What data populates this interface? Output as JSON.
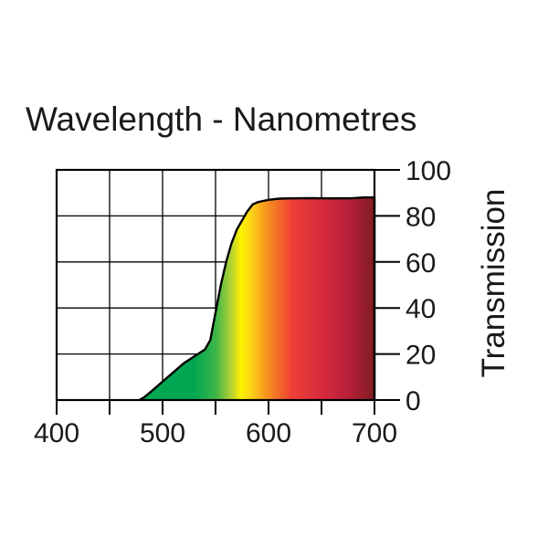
{
  "chart_data": {
    "type": "area",
    "title": "Wavelength - Nanometres",
    "xlabel": "",
    "ylabel": "Transmission",
    "xlim": [
      400,
      700
    ],
    "ylim": [
      0,
      100
    ],
    "x_ticks": [
      "400",
      "500",
      "600",
      "700"
    ],
    "y_ticks": [
      "0",
      "20",
      "40",
      "60",
      "80",
      "100"
    ],
    "grid": true,
    "fill": "visible-spectrum gradient",
    "series": [
      {
        "x": [
          478,
          482,
          490,
          500,
          510,
          520,
          530,
          540,
          545,
          550,
          555,
          560,
          565,
          570,
          575,
          580,
          585,
          590,
          595,
          600,
          610,
          620,
          640,
          660,
          680,
          690,
          700
        ],
        "y": [
          0,
          1,
          4,
          8,
          12,
          16,
          19,
          22,
          26,
          38,
          50,
          60,
          68,
          74,
          78,
          82,
          85,
          86,
          86.5,
          87,
          87.5,
          87.6,
          87.7,
          87.6,
          87.7,
          88,
          88
        ]
      }
    ]
  }
}
